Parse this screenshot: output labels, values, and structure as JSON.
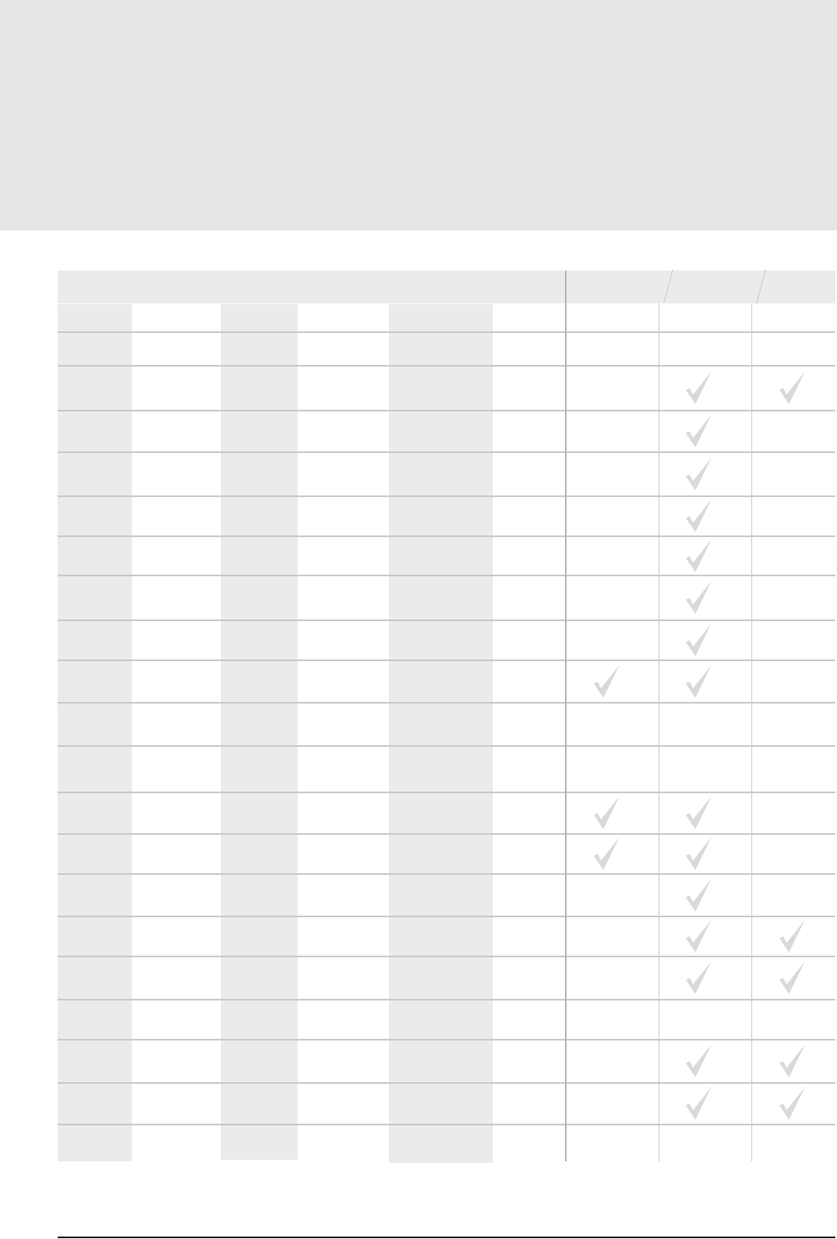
{
  "colors": {
    "band": "#e5e5e5",
    "cell_shade": "#ebebeb",
    "rule": "#c8c8c8",
    "check": "#d9d9d9"
  },
  "table": {
    "check_icon": "check-icon",
    "rows": [
      [
        false,
        false,
        false
      ],
      [
        false,
        false,
        false
      ],
      [
        false,
        true,
        true
      ],
      [
        false,
        true,
        false
      ],
      [
        false,
        true,
        false
      ],
      [
        false,
        true,
        false
      ],
      [
        false,
        true,
        false
      ],
      [
        false,
        true,
        false
      ],
      [
        false,
        true,
        false
      ],
      [
        true,
        true,
        false
      ],
      [
        false,
        false,
        false
      ],
      [
        false,
        false,
        false
      ],
      [
        true,
        true,
        false
      ],
      [
        true,
        true,
        false
      ],
      [
        false,
        true,
        false
      ],
      [
        false,
        true,
        true
      ],
      [
        false,
        true,
        true
      ],
      [
        false,
        false,
        false
      ],
      [
        false,
        true,
        true
      ],
      [
        false,
        true,
        true
      ],
      [
        false,
        false,
        false
      ]
    ]
  }
}
